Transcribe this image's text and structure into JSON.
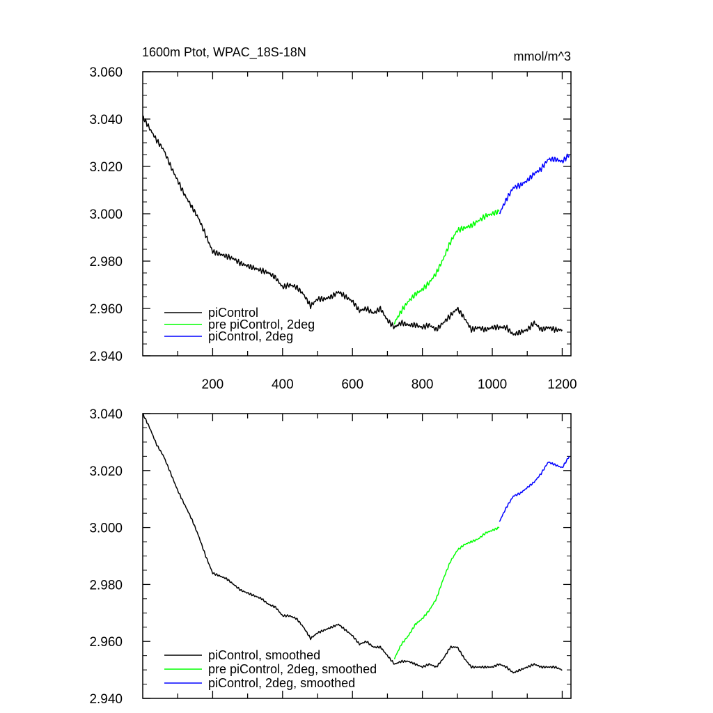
{
  "chart_data": [
    {
      "type": "line",
      "title": "1600m Ptot, WPAC_18S-18N",
      "units": "mmol/m^3",
      "xlim": [
        0,
        1225
      ],
      "ylim": [
        2.94,
        3.06
      ],
      "x_ticks": [
        200,
        400,
        600,
        800,
        1000,
        1200
      ],
      "x_tick_labels": [
        "200",
        "400",
        "600",
        "800",
        "1000",
        "1200"
      ],
      "y_ticks": [
        2.94,
        2.96,
        2.98,
        3.0,
        3.02,
        3.04,
        3.06
      ],
      "y_tick_labels": [
        "2.940",
        "2.960",
        "2.980",
        "3.000",
        "3.020",
        "3.040",
        "3.060"
      ],
      "legend_position": "bottom-left",
      "series": [
        {
          "name": "piControl",
          "color": "#000000",
          "x": [
            0,
            20,
            40,
            60,
            80,
            100,
            120,
            140,
            160,
            180,
            200,
            220,
            240,
            260,
            280,
            300,
            320,
            340,
            360,
            380,
            400,
            420,
            440,
            460,
            480,
            500,
            520,
            540,
            560,
            580,
            600,
            620,
            640,
            660,
            680,
            700,
            720,
            740,
            760,
            780,
            800,
            820,
            840,
            860,
            880,
            900,
            920,
            940,
            960,
            980,
            1000,
            1020,
            1040,
            1060,
            1080,
            1100,
            1120,
            1140,
            1160,
            1180,
            1200
          ],
          "values": [
            3.041,
            3.036,
            3.031,
            3.027,
            3.02,
            3.014,
            3.008,
            3.003,
            2.998,
            2.991,
            2.984,
            2.983,
            2.982,
            2.981,
            2.979,
            2.978,
            2.977,
            2.976,
            2.975,
            2.973,
            2.969,
            2.97,
            2.969,
            2.966,
            2.961,
            2.964,
            2.964,
            2.965,
            2.967,
            2.965,
            2.963,
            2.959,
            2.96,
            2.958,
            2.96,
            2.955,
            2.952,
            2.954,
            2.953,
            2.953,
            2.952,
            2.953,
            2.951,
            2.954,
            2.957,
            2.96,
            2.956,
            2.951,
            2.952,
            2.951,
            2.952,
            2.952,
            2.952,
            2.949,
            2.95,
            2.951,
            2.954,
            2.951,
            2.952,
            2.951,
            2.951
          ]
        },
        {
          "name": "pre piControl, 2deg",
          "color": "#00ff00",
          "x": [
            720,
            740,
            760,
            780,
            800,
            820,
            840,
            860,
            880,
            900,
            920,
            940,
            960,
            980,
            1000,
            1020
          ],
          "values": [
            2.954,
            2.959,
            2.963,
            2.966,
            2.968,
            2.971,
            2.975,
            2.981,
            2.988,
            2.993,
            2.994,
            2.995,
            2.997,
            2.999,
            3.0,
            3.001
          ]
        },
        {
          "name": "piControl, 2deg",
          "color": "#0000ff",
          "x": [
            1020,
            1040,
            1060,
            1080,
            1100,
            1120,
            1140,
            1160,
            1180,
            1200,
            1220
          ],
          "values": [
            3.0,
            3.006,
            3.011,
            3.012,
            3.014,
            3.017,
            3.019,
            3.023,
            3.023,
            3.022,
            3.025
          ]
        }
      ]
    },
    {
      "type": "line",
      "title": "",
      "units": "",
      "xlim": [
        0,
        1225
      ],
      "ylim": [
        2.94,
        3.04
      ],
      "y_ticks": [
        2.94,
        2.96,
        2.98,
        3.0,
        3.02,
        3.04
      ],
      "y_tick_labels": [
        "2.940",
        "2.960",
        "2.980",
        "3.000",
        "3.020",
        "3.040"
      ],
      "legend_position": "bottom-left",
      "series": [
        {
          "name": "piControl, smoothed",
          "color": "#000000",
          "x": [
            0,
            20,
            40,
            60,
            80,
            100,
            120,
            140,
            160,
            180,
            200,
            220,
            240,
            260,
            280,
            300,
            320,
            340,
            360,
            380,
            400,
            420,
            440,
            460,
            480,
            500,
            520,
            540,
            560,
            580,
            600,
            620,
            640,
            660,
            680,
            700,
            720,
            740,
            760,
            780,
            800,
            820,
            840,
            860,
            880,
            900,
            920,
            940,
            960,
            980,
            1000,
            1020,
            1040,
            1060,
            1080,
            1100,
            1120,
            1140,
            1160,
            1180,
            1200
          ],
          "values": [
            3.04,
            3.035,
            3.029,
            3.025,
            3.019,
            3.013,
            3.008,
            3.003,
            2.997,
            2.99,
            2.984,
            2.983,
            2.982,
            2.98,
            2.978,
            2.977,
            2.976,
            2.975,
            2.973,
            2.972,
            2.969,
            2.969,
            2.968,
            2.965,
            2.961,
            2.963,
            2.964,
            2.965,
            2.966,
            2.964,
            2.962,
            2.959,
            2.96,
            2.958,
            2.958,
            2.955,
            2.952,
            2.953,
            2.953,
            2.952,
            2.951,
            2.952,
            2.951,
            2.954,
            2.958,
            2.958,
            2.954,
            2.951,
            2.951,
            2.951,
            2.951,
            2.952,
            2.951,
            2.949,
            2.95,
            2.951,
            2.952,
            2.951,
            2.951,
            2.951,
            2.95
          ]
        },
        {
          "name": "pre piControl, 2deg, smoothed",
          "color": "#00ff00",
          "x": [
            720,
            740,
            760,
            780,
            800,
            820,
            840,
            860,
            880,
            900,
            920,
            940,
            960,
            980,
            1000,
            1020
          ],
          "values": [
            2.954,
            2.959,
            2.962,
            2.966,
            2.968,
            2.971,
            2.975,
            2.982,
            2.988,
            2.992,
            2.994,
            2.995,
            2.996,
            2.998,
            2.999,
            3.0
          ]
        },
        {
          "name": "piControl, 2deg, smoothed",
          "color": "#0000ff",
          "x": [
            1020,
            1040,
            1060,
            1080,
            1100,
            1120,
            1140,
            1160,
            1180,
            1200,
            1220
          ],
          "values": [
            3.002,
            3.007,
            3.011,
            3.012,
            3.014,
            3.016,
            3.019,
            3.023,
            3.022,
            3.021,
            3.025
          ]
        }
      ]
    }
  ]
}
